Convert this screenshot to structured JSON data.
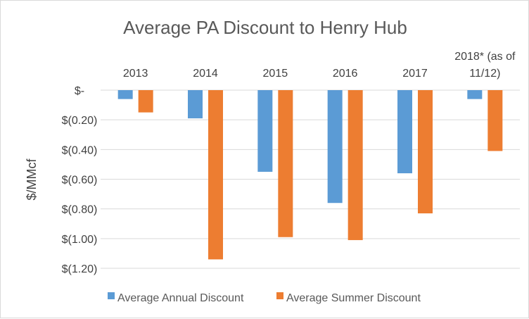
{
  "chart_data": {
    "type": "bar",
    "title": "Average PA Discount to Henry Hub",
    "ylabel": "$/MMcf",
    "xlabel": "",
    "categories": [
      "2013",
      "2014",
      "2015",
      "2016",
      "2017",
      "2018* (as of 11/12)"
    ],
    "category_label_lines": [
      [
        "2013"
      ],
      [
        "2014"
      ],
      [
        "2015"
      ],
      [
        "2016"
      ],
      [
        "2017"
      ],
      [
        "2018* (as of",
        "11/12)"
      ]
    ],
    "series": [
      {
        "name": "Average Annual Discount",
        "color": "#5b9bd5",
        "values": [
          -0.06,
          -0.19,
          -0.55,
          -0.76,
          -0.56,
          -0.06
        ]
      },
      {
        "name": "Average Summer Discount",
        "color": "#ed7d31",
        "values": [
          -0.15,
          -1.14,
          -0.99,
          -1.01,
          -0.83,
          -0.41
        ]
      }
    ],
    "ylim": [
      -1.2,
      0
    ],
    "yticks": [
      {
        "value": 0,
        "label": "$-"
      },
      {
        "value": -0.2,
        "label": "$(0.20)"
      },
      {
        "value": -0.4,
        "label": "$(0.40)"
      },
      {
        "value": -0.6,
        "label": "$(0.60)"
      },
      {
        "value": -0.8,
        "label": "$(0.80)"
      },
      {
        "value": -1.0,
        "label": "$(1.00)"
      },
      {
        "value": -1.2,
        "label": "$(1.20)"
      }
    ],
    "category_axis_position": "top",
    "grid": true,
    "legend_position": "bottom",
    "gridline_color": "#d9d9d9",
    "text_color": "#404040"
  }
}
